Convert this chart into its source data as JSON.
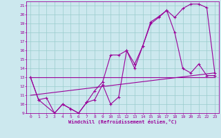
{
  "xlabel": "Windchill (Refroidissement éolien,°C)",
  "bg_color": "#cce8ee",
  "grid_color": "#99cccc",
  "line_color": "#990099",
  "xlim": [
    -0.5,
    23.5
  ],
  "ylim": [
    9,
    21.5
  ],
  "xticks": [
    0,
    1,
    2,
    3,
    4,
    5,
    6,
    7,
    8,
    9,
    10,
    11,
    12,
    13,
    14,
    15,
    16,
    17,
    18,
    19,
    20,
    21,
    22,
    23
  ],
  "yticks": [
    9,
    10,
    11,
    12,
    13,
    14,
    15,
    16,
    17,
    18,
    19,
    20,
    21
  ],
  "line1_x": [
    0,
    1,
    2,
    3,
    4,
    5,
    6,
    7,
    8,
    9,
    10,
    11,
    12,
    13,
    14,
    15,
    16,
    17,
    18,
    19,
    20,
    21,
    22,
    23
  ],
  "line1_y": [
    13,
    10.5,
    10.7,
    9.0,
    10.0,
    9.5,
    9.0,
    10.2,
    11.5,
    12.5,
    15.5,
    15.5,
    16.0,
    14.5,
    16.5,
    19.2,
    19.8,
    20.5,
    18.0,
    14.0,
    13.5,
    14.5,
    13.2,
    13.2
  ],
  "line2_x": [
    0,
    1,
    3,
    4,
    5,
    6,
    7,
    8,
    9,
    10,
    11,
    12,
    13,
    14,
    15,
    16,
    17,
    18,
    19,
    20,
    21,
    22,
    23
  ],
  "line2_y": [
    13,
    10.5,
    9.0,
    10.0,
    9.5,
    9.0,
    10.2,
    10.5,
    12.2,
    10.0,
    10.8,
    16.0,
    14.0,
    16.5,
    19.0,
    19.7,
    20.5,
    19.7,
    20.7,
    21.2,
    21.2,
    20.8,
    13.5
  ],
  "line3_x": [
    0,
    23
  ],
  "line3_y": [
    11.0,
    13.5
  ],
  "line4_x": [
    0,
    23
  ],
  "line4_y": [
    13.0,
    13.0
  ]
}
